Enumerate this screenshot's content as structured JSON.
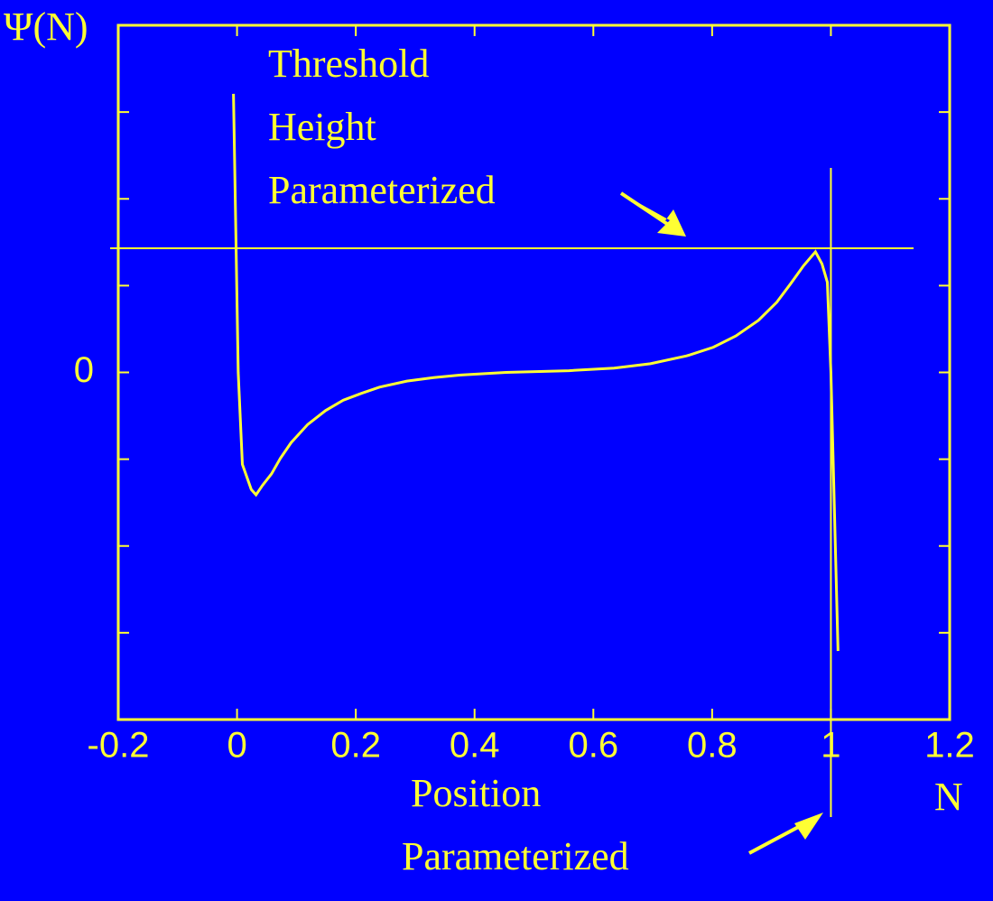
{
  "chart_data": {
    "type": "line",
    "x_label": "N",
    "y_label": "Ψ(N)",
    "xlim": [
      -0.2,
      1.2
    ],
    "xticks": [
      -0.2,
      0,
      0.2,
      0.4,
      0.6,
      0.8,
      1,
      1.2
    ],
    "ylim": [
      -4,
      4
    ],
    "yticks": [
      {
        "value": -3,
        "label": null
      },
      {
        "value": -2,
        "label": null
      },
      {
        "value": -1,
        "label": null
      },
      0,
      {
        "value": 1,
        "label": null
      },
      {
        "value": 2,
        "label": null
      },
      {
        "value": 3,
        "label": null
      }
    ],
    "color": "#ffff33",
    "series": [
      {
        "x": [
          -0.006,
          0.002,
          0.009,
          0.024,
          0.032,
          0.043,
          0.058,
          0.073,
          0.091,
          0.119,
          0.149,
          0.179,
          0.21,
          0.24,
          0.286,
          0.331,
          0.377,
          0.453,
          0.559,
          0.635,
          0.696,
          0.757,
          0.802,
          0.84,
          0.878,
          0.909,
          0.932,
          0.954,
          0.974,
          0.985,
          0.994,
          1.0,
          1.012
        ],
        "values": [
          3.21,
          0,
          -1.06,
          -1.35,
          -1.41,
          -1.3,
          -1.17,
          -0.99,
          -0.81,
          -0.6,
          -0.44,
          -0.32,
          -0.24,
          -0.17,
          -0.1,
          -0.06,
          -0.03,
          0,
          0.02,
          0.05,
          0.1,
          0.19,
          0.29,
          0.42,
          0.6,
          0.81,
          1.02,
          1.23,
          1.39,
          1.25,
          1.04,
          0,
          -3.21
        ]
      }
    ],
    "threshold": 1.43,
    "position": 1.0,
    "annotations": [
      {
        "lines": [
          "Threshold",
          "Height",
          "Parameterized"
        ]
      },
      {
        "lines": [
          "Position",
          "Parameterized"
        ]
      }
    ]
  }
}
